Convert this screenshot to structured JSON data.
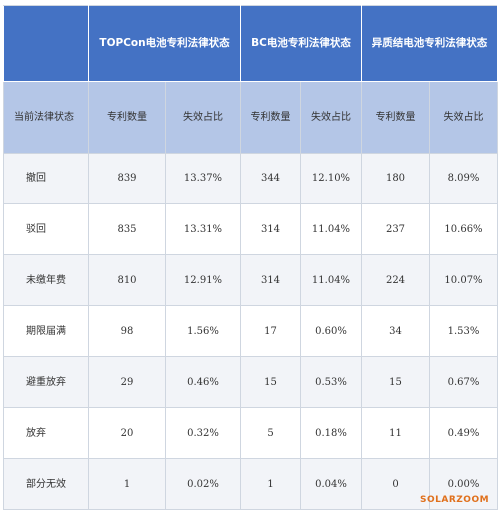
{
  "header": {
    "groups": [
      "TOPCon电池专利法律状态",
      "BC电池专利法律状态",
      "异质结电池专利法律状态"
    ],
    "state_label": "当前法律状态",
    "sub_labels": [
      "专利数量",
      "失效占比",
      "专利数量",
      "失效占比",
      "专利数量",
      "失效占比"
    ]
  },
  "rows": [
    {
      "label": "撤回",
      "values": [
        "839",
        "13.37%",
        "344",
        "12.10%",
        "180",
        "8.09%"
      ]
    },
    {
      "label": "驳回",
      "values": [
        "835",
        "13.31%",
        "314",
        "11.04%",
        "237",
        "10.66%"
      ]
    },
    {
      "label": "未缴年费",
      "values": [
        "810",
        "12.91%",
        "314",
        "11.04%",
        "224",
        "10.07%"
      ]
    },
    {
      "label": "期限届满",
      "values": [
        "98",
        "1.56%",
        "17",
        "0.60%",
        "34",
        "1.53%"
      ]
    },
    {
      "label": "避重放弃",
      "values": [
        "29",
        "0.46%",
        "15",
        "0.53%",
        "15",
        "0.67%"
      ]
    },
    {
      "label": "放弃",
      "values": [
        "20",
        "0.32%",
        "5",
        "0.18%",
        "11",
        "0.49%"
      ]
    },
    {
      "label": "部分无效",
      "values": [
        "1",
        "0.02%",
        "1",
        "0.04%",
        "0",
        "0.00%"
      ]
    }
  ],
  "watermark": "SOLARZOOM"
}
